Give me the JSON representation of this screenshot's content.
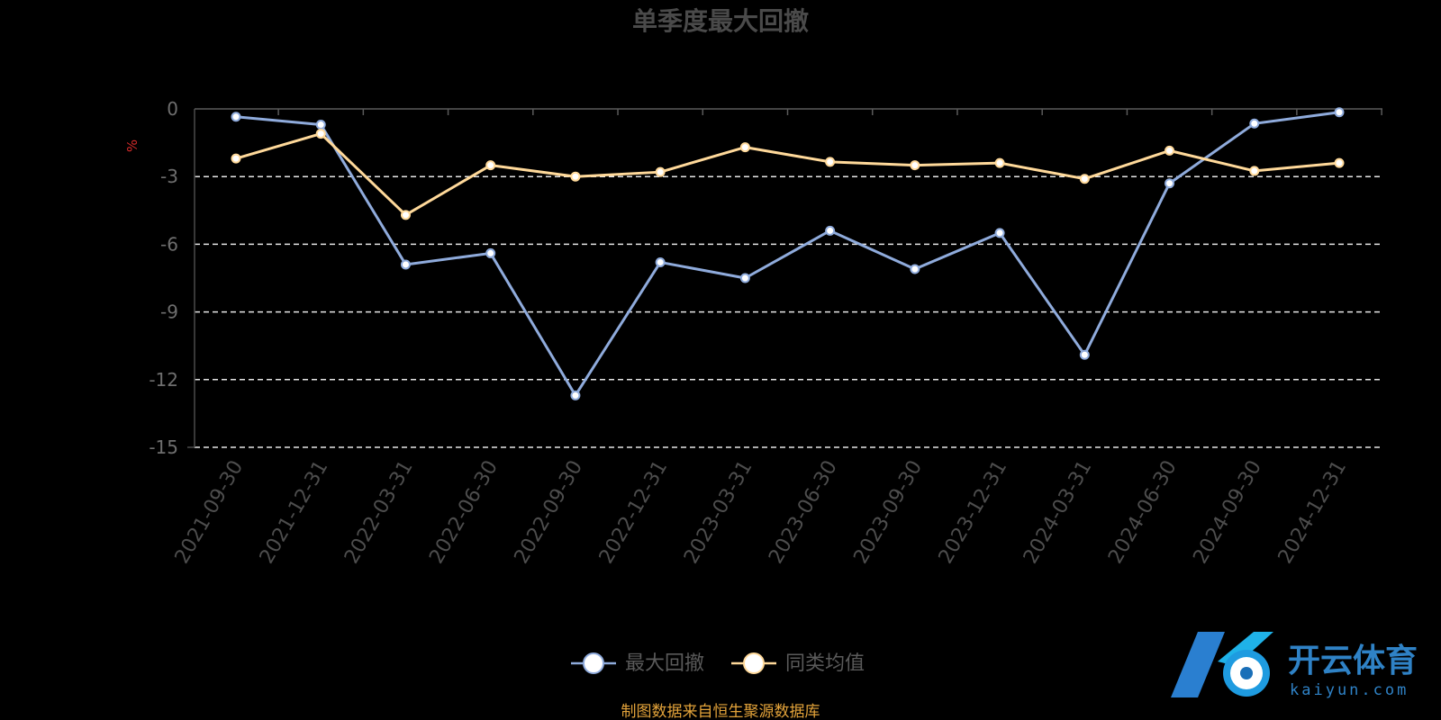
{
  "chart_data": {
    "type": "line",
    "title": "单季度最大回撤",
    "ylabel": "%",
    "ylim": [
      -15,
      0
    ],
    "yticks": [
      0,
      -3,
      -6,
      -9,
      -12,
      -15
    ],
    "grid": true,
    "legend_position": "bottom-center",
    "categories": [
      "2021-09-30",
      "2021-12-31",
      "2022-03-31",
      "2022-06-30",
      "2022-09-30",
      "2022-12-31",
      "2023-03-31",
      "2023-06-30",
      "2023-09-30",
      "2023-12-31",
      "2024-03-31",
      "2024-06-30",
      "2024-09-30",
      "2024-12-31"
    ],
    "series": [
      {
        "name": "最大回撤",
        "color": "#8fabdc",
        "values": [
          -0.35,
          -0.7,
          -6.9,
          -6.4,
          -12.7,
          -6.8,
          -7.5,
          -5.4,
          -7.1,
          -5.5,
          -10.9,
          -3.3,
          -0.65,
          -0.15
        ]
      },
      {
        "name": "同类均值",
        "color": "#ffd99a",
        "values": [
          -2.2,
          -1.1,
          -4.7,
          -2.5,
          -3.0,
          -2.8,
          -1.7,
          -2.35,
          -2.5,
          -2.4,
          -3.1,
          -1.85,
          -2.75,
          -2.4
        ]
      }
    ]
  },
  "footer": {
    "source": "制图数据来自恒生聚源数据库"
  },
  "watermark": {
    "cn": "开云体育",
    "en": "kaiyun.com"
  }
}
